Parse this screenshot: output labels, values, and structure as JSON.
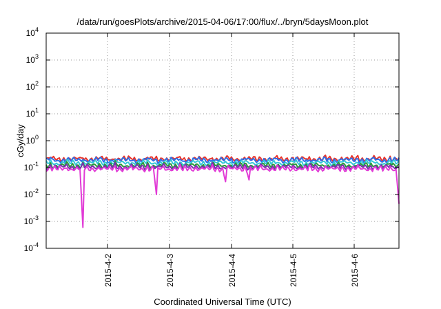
{
  "chart_data": {
    "type": "line",
    "title": "/data/run/goesPlots/archive/2015-04-06/17:00/flux/../bryn/5daysMoon.plot",
    "xlabel": "Coordinated Universal Time (UTC)",
    "ylabel": "cGy/day",
    "y_scale": "log",
    "ylim": [
      0.0001,
      10000
    ],
    "y_ticks": [
      {
        "base": "10",
        "exp": "-4",
        "value": 0.0001
      },
      {
        "base": "10",
        "exp": "-3",
        "value": 0.001
      },
      {
        "base": "10",
        "exp": "-2",
        "value": 0.01
      },
      {
        "base": "10",
        "exp": "-1",
        "value": 0.1
      },
      {
        "base": "10",
        "exp": "0",
        "value": 1
      },
      {
        "base": "10",
        "exp": "1",
        "value": 10
      },
      {
        "base": "10",
        "exp": "2",
        "value": 100
      },
      {
        "base": "10",
        "exp": "3",
        "value": 1000
      },
      {
        "base": "10",
        "exp": "4",
        "value": 10000
      }
    ],
    "xlim": [
      "2015-04-01T01:00",
      "2015-04-06T17:00"
    ],
    "x_ticks": [
      {
        "label": "2015-4-2",
        "value": "2015-04-02"
      },
      {
        "label": "2015-4-3",
        "value": "2015-04-03"
      },
      {
        "label": "2015-4-4",
        "value": "2015-04-04"
      },
      {
        "label": "2015-4-5",
        "value": "2015-04-05"
      },
      {
        "label": "2015-4-6",
        "value": "2015-04-06"
      }
    ],
    "grid": true,
    "legend": "none",
    "series": [
      {
        "color": "#e8332a",
        "base": 0.21,
        "dips": []
      },
      {
        "color": "#2f6ee6",
        "base": 0.19,
        "dips": []
      },
      {
        "color": "#34c8d8",
        "base": 0.15,
        "dips": []
      },
      {
        "color": "#2a9a3a",
        "base": 0.12,
        "dips": []
      },
      {
        "color": "#7a2fb0",
        "base": 0.105,
        "dips": []
      },
      {
        "color": "#e13bd6",
        "base": 0.09,
        "dips": [
          {
            "x": "2015-04-01T15:00",
            "y": 0.0006
          },
          {
            "x": "2015-04-02T19:20",
            "y": 0.01
          },
          {
            "x": "2015-04-03T22:00",
            "y": 0.03
          },
          {
            "x": "2015-04-04T07:00",
            "y": 0.035
          },
          {
            "x": "2015-04-06T16:50",
            "y": 0.0045
          }
        ]
      }
    ]
  }
}
